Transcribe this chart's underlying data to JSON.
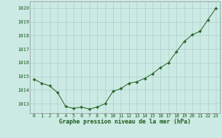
{
  "x": [
    0,
    1,
    2,
    3,
    4,
    5,
    6,
    7,
    8,
    9,
    10,
    11,
    12,
    13,
    14,
    15,
    16,
    17,
    18,
    19,
    20,
    21,
    22,
    23
  ],
  "y": [
    1014.8,
    1014.5,
    1014.3,
    1013.8,
    1012.8,
    1012.65,
    1012.75,
    1012.6,
    1012.75,
    1013.0,
    1013.9,
    1014.1,
    1014.5,
    1014.6,
    1014.85,
    1015.2,
    1015.65,
    1016.0,
    1016.8,
    1017.55,
    1018.05,
    1018.3,
    1019.15,
    1020.0
  ],
  "line_color": "#2d6a2d",
  "marker": "D",
  "marker_size": 2.2,
  "bg_color": "#cceae4",
  "grid_color": "#aacccc",
  "xlabel": "Graphe pression niveau de la mer (hPa)",
  "xlabel_color": "#1a5c1a",
  "xlabel_fontsize": 6.0,
  "ylabel_ticks": [
    1013,
    1014,
    1015,
    1016,
    1017,
    1018,
    1019,
    1020
  ],
  "xtick_labels": [
    "0",
    "1",
    "2",
    "3",
    "4",
    "5",
    "6",
    "7",
    "8",
    "9",
    "10",
    "11",
    "12",
    "13",
    "14",
    "15",
    "16",
    "17",
    "18",
    "19",
    "20",
    "21",
    "22",
    "23"
  ],
  "ylim": [
    1012.3,
    1020.5
  ],
  "xlim": [
    -0.5,
    23.5
  ],
  "tick_color": "#1a5c1a",
  "tick_fontsize": 5.0,
  "spine_color": "#888888"
}
